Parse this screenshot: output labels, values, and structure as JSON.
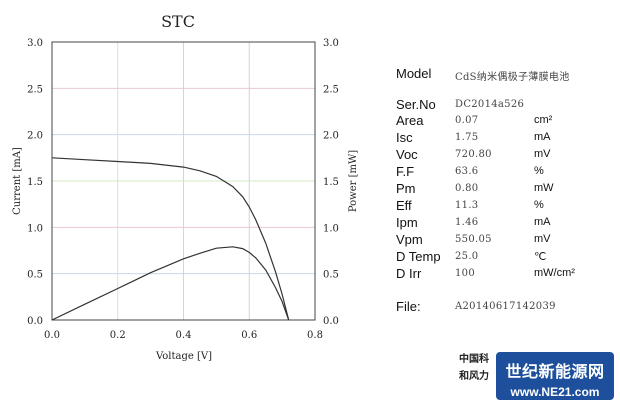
{
  "chart_data": {
    "type": "line",
    "title": "STC",
    "xlabel": "Voltage [V]",
    "ylabel_left": "Current [mA]",
    "ylabel_right": "Power [mW]",
    "xlim": [
      0,
      0.8
    ],
    "ylim": [
      0,
      3.0
    ],
    "x_ticks": [
      0.0,
      0.2,
      0.4,
      0.6,
      0.8
    ],
    "x_tick_labels": [
      "0.0",
      "0.2",
      "0.4",
      "0.6",
      "0.8"
    ],
    "y_ticks": [
      0,
      0.5,
      1.0,
      1.5,
      2.0,
      2.5,
      3.0
    ],
    "y_tick_labels": [
      "0.0",
      "0.5",
      "1.0",
      "1.5",
      "2.0",
      "2.5",
      "3.0"
    ],
    "grid": true,
    "grid_colors": [
      "#e8c8d8",
      "#d4e8c4",
      "#c8d8ec"
    ],
    "line_color": "#333333",
    "series": [
      {
        "x": [
          0.0,
          0.1,
          0.2,
          0.3,
          0.4,
          0.45,
          0.5,
          0.55,
          0.58,
          0.6,
          0.62,
          0.65,
          0.68,
          0.7,
          0.72
        ],
        "y": [
          1.75,
          1.73,
          1.71,
          1.69,
          1.65,
          1.61,
          1.55,
          1.44,
          1.33,
          1.22,
          1.08,
          0.83,
          0.52,
          0.28,
          0.0
        ]
      },
      {
        "x": [
          0.0,
          0.1,
          0.2,
          0.3,
          0.4,
          0.45,
          0.5,
          0.55,
          0.58,
          0.6,
          0.62,
          0.65,
          0.68,
          0.7,
          0.72
        ],
        "y": [
          0.0,
          0.17,
          0.34,
          0.51,
          0.66,
          0.72,
          0.775,
          0.79,
          0.77,
          0.73,
          0.67,
          0.54,
          0.35,
          0.2,
          0.0
        ]
      }
    ]
  },
  "params": [
    {
      "label": "Model",
      "value": "CdS纳米偶极子薄膜电池",
      "unit": ""
    },
    {
      "label": "Ser.No",
      "value": "DC2014a526",
      "unit": ""
    },
    {
      "label": "Area",
      "value": "0.07",
      "unit": "cm²"
    },
    {
      "label": "Isc",
      "value": "1.75",
      "unit": "mA"
    },
    {
      "label": "Voc",
      "value": "720.80",
      "unit": "mV"
    },
    {
      "label": "F.F",
      "value": "63.6",
      "unit": "%"
    },
    {
      "label": "Pm",
      "value": "0.80",
      "unit": "mW"
    },
    {
      "label": "Eff",
      "value": "11.3",
      "unit": "%"
    },
    {
      "label": "Ipm",
      "value": "1.46",
      "unit": "mA"
    },
    {
      "label": "Vpm",
      "value": "550.05",
      "unit": "mV"
    },
    {
      "label": "D Temp",
      "value": "25.0",
      "unit": "℃"
    },
    {
      "label": "D Irr",
      "value": "100",
      "unit": "mW/cm²"
    },
    {
      "label": "File:",
      "value": "A20140617142039",
      "unit": ""
    }
  ],
  "org_lines": [
    "中国科",
    "和风力"
  ],
  "logo": {
    "line1": "世纪新能源网",
    "line2": "www.NE21.com"
  }
}
